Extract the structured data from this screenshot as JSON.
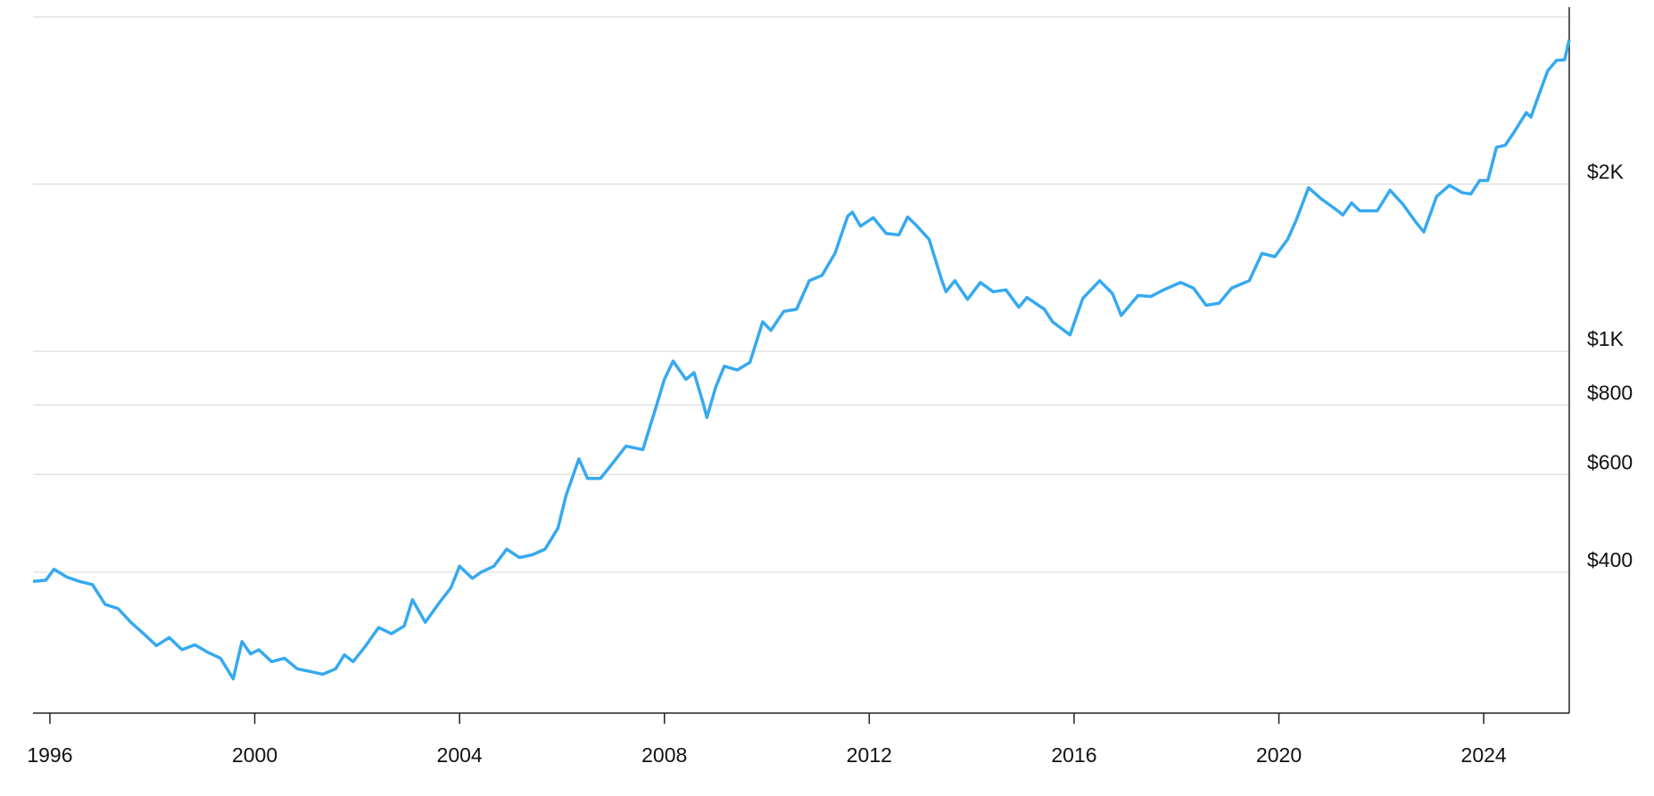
{
  "chart_data": {
    "type": "line",
    "log_scale_y": true,
    "grid": true,
    "color": "#36a9f0",
    "xlim": [
      1995.67,
      2025.67
    ],
    "ylim": [
      223,
      4000
    ],
    "xticks": [
      1996,
      2000,
      2004,
      2008,
      2012,
      2016,
      2020,
      2024
    ],
    "yticks": [
      {
        "value": 400,
        "label": "$400"
      },
      {
        "value": 600,
        "label": "$600"
      },
      {
        "value": 800,
        "label": "$800"
      },
      {
        "value": 1000,
        "label": "$1K"
      },
      {
        "value": 2000,
        "label": "$2K"
      }
    ],
    "x": [
      1995.67,
      1995.92,
      1996.08,
      1996.33,
      1996.58,
      1996.83,
      1997.08,
      1997.33,
      1997.58,
      1997.83,
      1998.08,
      1998.33,
      1998.58,
      1998.83,
      1999.08,
      1999.33,
      1999.58,
      1999.75,
      1999.92,
      2000.08,
      2000.33,
      2000.58,
      2000.83,
      2001.08,
      2001.33,
      2001.58,
      2001.75,
      2001.92,
      2002.17,
      2002.42,
      2002.67,
      2002.92,
      2003.08,
      2003.33,
      2003.58,
      2003.83,
      2004.0,
      2004.25,
      2004.42,
      2004.67,
      2004.92,
      2005.17,
      2005.42,
      2005.67,
      2005.92,
      2006.08,
      2006.33,
      2006.5,
      2006.75,
      2007.0,
      2007.25,
      2007.58,
      2007.83,
      2008.0,
      2008.17,
      2008.42,
      2008.58,
      2008.75,
      2008.83,
      2009.0,
      2009.17,
      2009.42,
      2009.67,
      2009.92,
      2010.08,
      2010.33,
      2010.58,
      2010.83,
      2011.08,
      2011.33,
      2011.58,
      2011.67,
      2011.83,
      2012.08,
      2012.33,
      2012.58,
      2012.75,
      2012.92,
      2013.17,
      2013.42,
      2013.5,
      2013.67,
      2013.92,
      2014.17,
      2014.42,
      2014.67,
      2014.92,
      2015.08,
      2015.42,
      2015.58,
      2015.92,
      2016.17,
      2016.5,
      2016.75,
      2016.92,
      2017.25,
      2017.5,
      2017.75,
      2018.08,
      2018.33,
      2018.58,
      2018.83,
      2019.08,
      2019.42,
      2019.67,
      2019.92,
      2020.17,
      2020.33,
      2020.58,
      2020.83,
      2021.08,
      2021.25,
      2021.42,
      2021.58,
      2021.92,
      2022.17,
      2022.42,
      2022.67,
      2022.83,
      2023.08,
      2023.33,
      2023.58,
      2023.75,
      2023.92,
      2024.08,
      2024.25,
      2024.42,
      2024.58,
      2024.83,
      2024.92,
      2025.08,
      2025.25,
      2025.42,
      2025.58,
      2025.67
    ],
    "values": [
      385,
      387,
      405,
      392,
      385,
      380,
      350,
      344,
      325,
      310,
      295,
      305,
      290,
      296,
      287,
      280,
      257,
      300,
      285,
      290,
      276,
      280,
      268,
      265,
      262,
      268,
      284,
      276,
      295,
      318,
      310,
      320,
      357,
      325,
      350,
      375,
      410,
      390,
      400,
      410,
      440,
      425,
      430,
      440,
      480,
      550,
      640,
      590,
      590,
      630,
      675,
      665,
      790,
      890,
      960,
      890,
      915,
      810,
      760,
      860,
      940,
      925,
      955,
      1130,
      1090,
      1180,
      1190,
      1340,
      1370,
      1500,
      1750,
      1780,
      1680,
      1740,
      1630,
      1620,
      1745,
      1685,
      1590,
      1340,
      1280,
      1340,
      1240,
      1330,
      1280,
      1290,
      1200,
      1250,
      1190,
      1130,
      1070,
      1245,
      1340,
      1270,
      1160,
      1260,
      1255,
      1290,
      1330,
      1300,
      1210,
      1220,
      1300,
      1340,
      1500,
      1480,
      1590,
      1715,
      1970,
      1880,
      1810,
      1760,
      1850,
      1790,
      1790,
      1950,
      1840,
      1710,
      1640,
      1900,
      1990,
      1930,
      1920,
      2030,
      2030,
      2330,
      2350,
      2470,
      2690,
      2640,
      2900,
      3200,
      3340,
      3350,
      3640
    ]
  }
}
